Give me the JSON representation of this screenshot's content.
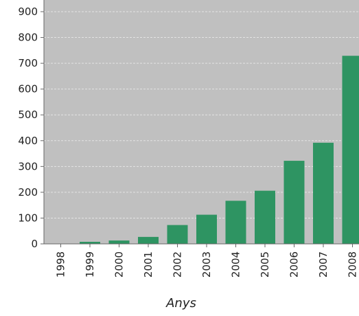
{
  "colors": {
    "plot_background": "#c0c0c0",
    "bar": "#2e9462",
    "gridline": "#e4e4e4"
  },
  "chart_data": {
    "type": "bar",
    "title": "",
    "xlabel": "Anys",
    "ylabel": "",
    "categories": [
      "1998",
      "1999",
      "2000",
      "2001",
      "2002",
      "2003",
      "2004",
      "2005",
      "2006",
      "2007",
      "2008"
    ],
    "values": [
      0,
      8,
      13,
      27,
      73,
      113,
      167,
      206,
      322,
      392,
      729
    ],
    "ylim": [
      0,
      900
    ],
    "yticks": [
      0,
      100,
      200,
      300,
      400,
      500,
      600,
      700,
      800,
      900
    ],
    "grid": true,
    "legend": false
  }
}
